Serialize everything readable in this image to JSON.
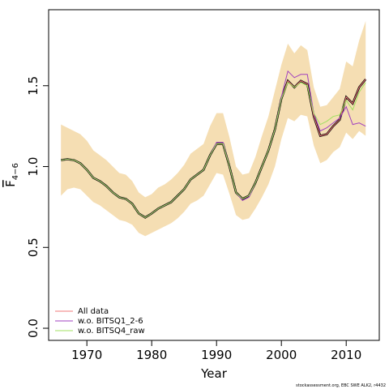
{
  "chart_data": {
    "type": "line",
    "x_label": "Year",
    "y_label": "F",
    "y_label_sub": "4−6",
    "footnote": "stockassessment.org, EBC SWE ALK2, r4432",
    "x": [
      1966,
      1967,
      1968,
      1969,
      1970,
      1971,
      1972,
      1973,
      1974,
      1975,
      1976,
      1977,
      1978,
      1979,
      1980,
      1981,
      1982,
      1983,
      1984,
      1985,
      1986,
      1987,
      1988,
      1989,
      1990,
      1991,
      1992,
      1993,
      1994,
      1995,
      1996,
      1997,
      1998,
      1999,
      2000,
      2001,
      2002,
      2003,
      2004,
      2005,
      2006,
      2007,
      2008,
      2009,
      2010,
      2011,
      2012,
      2013
    ],
    "estimate": {
      "color": "#000000",
      "band_color": "#f5deb3",
      "values": [
        1.04,
        1.045,
        1.04,
        1.02,
        0.98,
        0.93,
        0.91,
        0.88,
        0.84,
        0.81,
        0.8,
        0.77,
        0.71,
        0.685,
        0.71,
        0.74,
        0.76,
        0.78,
        0.82,
        0.86,
        0.92,
        0.95,
        0.98,
        1.07,
        1.14,
        1.14,
        1.0,
        0.84,
        0.8,
        0.82,
        0.9,
        1.0,
        1.1,
        1.23,
        1.42,
        1.53,
        1.49,
        1.53,
        1.51,
        1.31,
        1.19,
        1.2,
        1.25,
        1.29,
        1.43,
        1.39,
        1.49,
        1.54
      ],
      "lower": [
        0.82,
        0.86,
        0.87,
        0.86,
        0.82,
        0.78,
        0.76,
        0.73,
        0.7,
        0.67,
        0.66,
        0.64,
        0.59,
        0.57,
        0.59,
        0.61,
        0.63,
        0.65,
        0.68,
        0.72,
        0.77,
        0.79,
        0.82,
        0.89,
        0.96,
        0.95,
        0.83,
        0.7,
        0.67,
        0.68,
        0.74,
        0.81,
        0.89,
        1.0,
        1.17,
        1.3,
        1.28,
        1.32,
        1.31,
        1.13,
        1.02,
        1.04,
        1.09,
        1.12,
        1.21,
        1.17,
        1.22,
        1.19
      ],
      "upper": [
        1.26,
        1.24,
        1.22,
        1.2,
        1.16,
        1.1,
        1.07,
        1.04,
        1.0,
        0.96,
        0.95,
        0.91,
        0.84,
        0.81,
        0.83,
        0.87,
        0.89,
        0.92,
        0.96,
        1.01,
        1.08,
        1.11,
        1.14,
        1.25,
        1.33,
        1.33,
        1.18,
        1.0,
        0.95,
        0.96,
        1.06,
        1.19,
        1.31,
        1.47,
        1.63,
        1.76,
        1.7,
        1.75,
        1.72,
        1.49,
        1.37,
        1.38,
        1.43,
        1.48,
        1.65,
        1.62,
        1.78,
        1.9
      ]
    },
    "series": [
      {
        "name": "All data",
        "color": "#f07878",
        "values": [
          1.04,
          1.045,
          1.04,
          1.02,
          0.98,
          0.93,
          0.91,
          0.88,
          0.84,
          0.81,
          0.8,
          0.77,
          0.71,
          0.685,
          0.71,
          0.74,
          0.76,
          0.78,
          0.82,
          0.86,
          0.92,
          0.95,
          0.98,
          1.07,
          1.14,
          1.14,
          1.0,
          0.84,
          0.8,
          0.82,
          0.9,
          1.0,
          1.1,
          1.23,
          1.42,
          1.53,
          1.49,
          1.53,
          1.51,
          1.31,
          1.19,
          1.2,
          1.25,
          1.29,
          1.43,
          1.39,
          1.49,
          1.54
        ]
      },
      {
        "name": "w.o. BITSQ1_2-6",
        "color": "#a040c0",
        "values": [
          1.04,
          1.045,
          1.04,
          1.02,
          0.98,
          0.93,
          0.91,
          0.88,
          0.84,
          0.81,
          0.8,
          0.77,
          0.71,
          0.685,
          0.71,
          0.74,
          0.76,
          0.78,
          0.82,
          0.86,
          0.92,
          0.95,
          0.98,
          1.07,
          1.15,
          1.15,
          1.0,
          0.84,
          0.79,
          0.81,
          0.9,
          1.0,
          1.1,
          1.23,
          1.43,
          1.59,
          1.55,
          1.57,
          1.57,
          1.33,
          1.22,
          1.24,
          1.27,
          1.3,
          1.37,
          1.26,
          1.27,
          1.25
        ]
      },
      {
        "name": "w.o. BITSQ4_raw",
        "color": "#a0e060",
        "values": [
          1.04,
          1.045,
          1.04,
          1.02,
          0.98,
          0.93,
          0.91,
          0.88,
          0.84,
          0.81,
          0.8,
          0.77,
          0.71,
          0.685,
          0.71,
          0.74,
          0.76,
          0.78,
          0.82,
          0.86,
          0.92,
          0.95,
          0.98,
          1.07,
          1.14,
          1.14,
          1.0,
          0.84,
          0.8,
          0.82,
          0.9,
          1.0,
          1.1,
          1.23,
          1.42,
          1.52,
          1.49,
          1.52,
          1.5,
          1.33,
          1.26,
          1.28,
          1.31,
          1.32,
          1.41,
          1.35,
          1.46,
          1.52
        ]
      }
    ],
    "xlim": [
      1964.1,
      2015.1
    ],
    "ylim": [
      -0.075,
      1.97
    ],
    "xticks": [
      1970,
      1980,
      1990,
      2000,
      2010
    ],
    "yticks": [
      {
        "value": 0,
        "label": "0.0"
      },
      0.5,
      {
        "value": 1,
        "label": "1.0"
      },
      1.5
    ],
    "legend": "bottom-left"
  }
}
